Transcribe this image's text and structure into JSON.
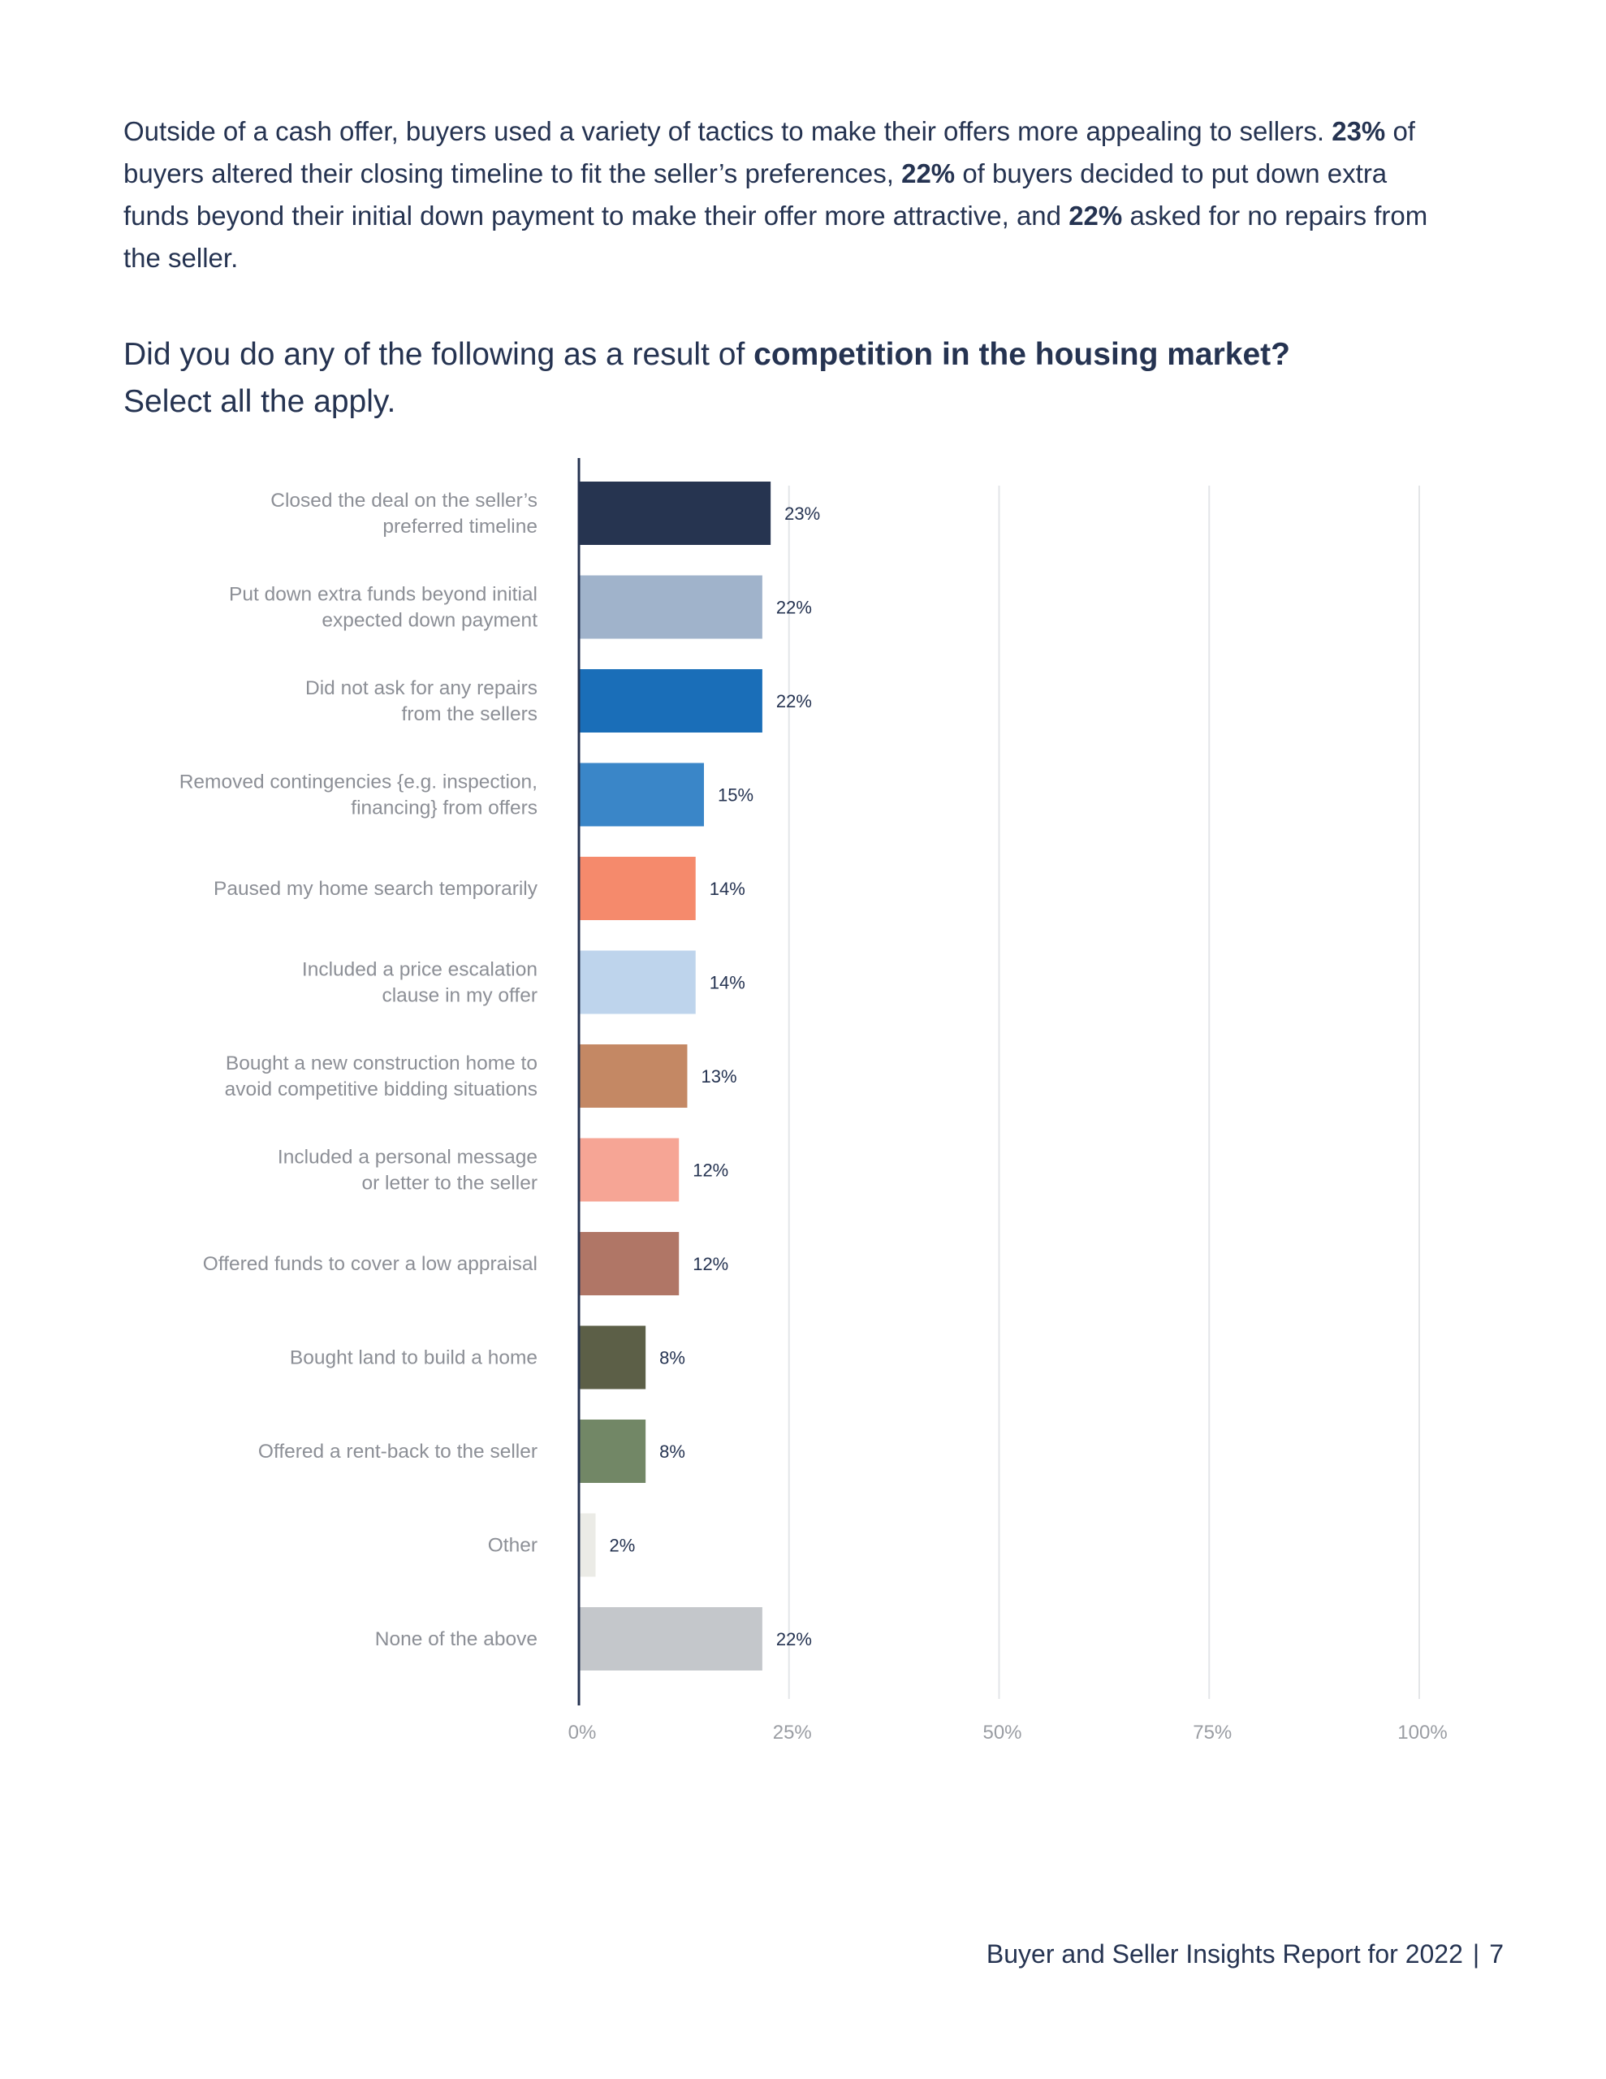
{
  "intro": {
    "part1": "Outside of a cash offer, buyers used a variety of tactics to make their offers more appealing to sellers.",
    "stat1": "23%",
    "part2": "of buyers altered their closing timeline to fit the seller’s preferences,",
    "stat2": "22%",
    "part3": "of buyers decided to put down extra funds beyond their initial down payment to make their offer more attractive, and",
    "stat3": "22%",
    "part4": "asked for no repairs from the seller."
  },
  "question": {
    "prefix": "Did you do any of the following as a result of",
    "bold": "competition in the housing market?",
    "line2": "Select all the apply."
  },
  "chart_data": {
    "type": "bar",
    "orientation": "horizontal",
    "title": "Did you do any of the following as a result of competition in the housing market? Select all the apply.",
    "xlabel": "",
    "ylabel": "",
    "xlim": [
      0,
      100
    ],
    "grid": true,
    "ticks": [
      "0%",
      "25%",
      "50%",
      "75%",
      "100%"
    ],
    "tick_values": [
      0,
      25,
      50,
      75,
      100
    ],
    "categories": [
      [
        "Closed the deal on the seller’s",
        "preferred timeline"
      ],
      [
        "Put down extra funds beyond initial",
        "expected down payment"
      ],
      [
        "Did not ask for any repairs",
        "from the sellers"
      ],
      [
        "Removed contingencies {e.g. inspection,",
        "financing} from offers"
      ],
      [
        "Paused my home search temporarily"
      ],
      [
        "Included a price escalation",
        "clause in my offer"
      ],
      [
        "Bought a new construction home to",
        "avoid competitive bidding situations"
      ],
      [
        "Included a personal message",
        "or letter to the seller"
      ],
      [
        "Offered funds to cover a low appraisal"
      ],
      [
        "Bought land to build a home"
      ],
      [
        "Offered a rent-back to the seller"
      ],
      [
        "Other"
      ],
      [
        "None of the above"
      ]
    ],
    "values": [
      23,
      22,
      22,
      15,
      14,
      14,
      13,
      12,
      12,
      8,
      8,
      2,
      22
    ],
    "value_labels": [
      "23%",
      "22%",
      "22%",
      "15%",
      "14%",
      "14%",
      "13%",
      "12%",
      "12%",
      "8%",
      "8%",
      "2%",
      "22%"
    ],
    "colors": [
      "#263450",
      "#a0b3cb",
      "#1a6eb8",
      "#3a86c8",
      "#f58a6c",
      "#bed4ec",
      "#c48864",
      "#f6a595",
      "#b07666",
      "#5c5f47",
      "#728766",
      "#ebebe6",
      "#c4c7cb"
    ]
  },
  "footer": {
    "report": "Buyer and Seller Insights Report for 2022",
    "separator": "|",
    "page": "7"
  }
}
